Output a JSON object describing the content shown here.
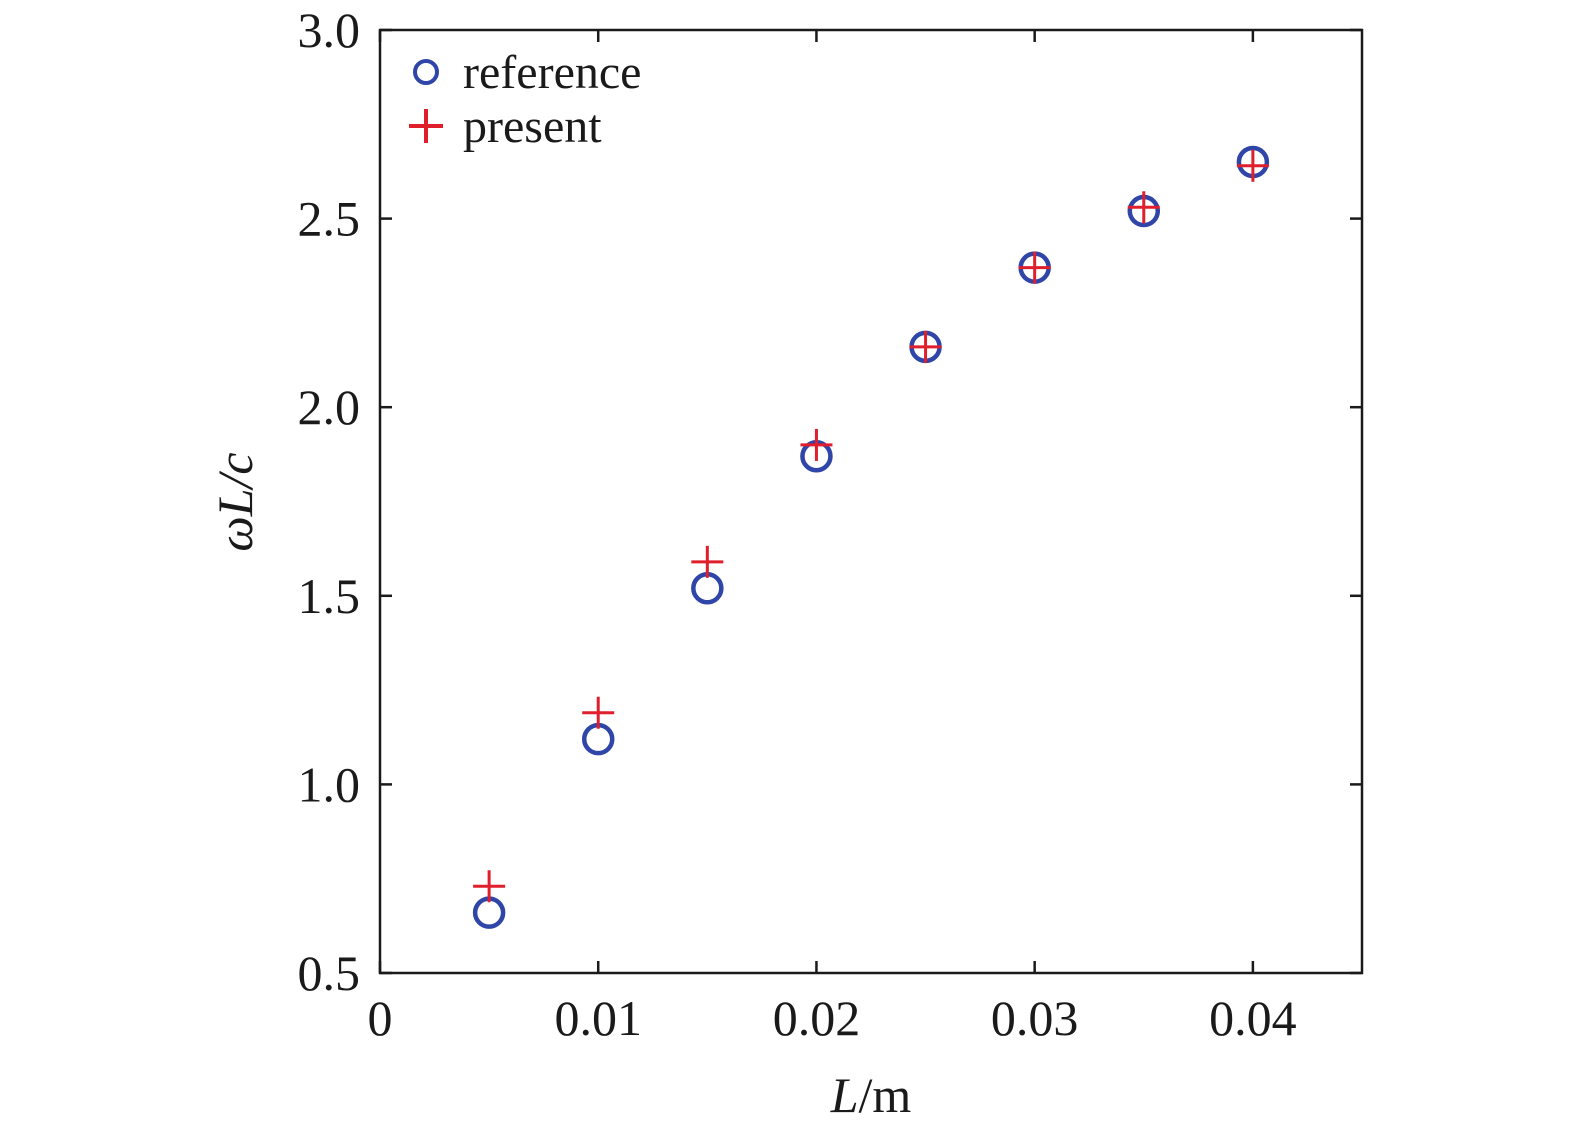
{
  "chart_data": {
    "type": "scatter",
    "xlabel_italic": "L",
    "xlabel_unit": "/m",
    "ylabel_omega": "ω",
    "ylabel_L": "L",
    "ylabel_rest": "/c",
    "xlim": [
      0,
      0.045
    ],
    "ylim": [
      0.5,
      3.0
    ],
    "xticks": [
      0,
      0.01,
      0.02,
      0.03,
      0.04
    ],
    "xtick_labels": [
      "0",
      "0.01",
      "0.02",
      "0.03",
      "0.04"
    ],
    "yticks": [
      0.5,
      1.0,
      1.5,
      2.0,
      2.5,
      3.0
    ],
    "ytick_labels": [
      "0.5",
      "1.0",
      "1.5",
      "2.0",
      "2.5",
      "3.0"
    ],
    "grid": false,
    "legend_position": "top-left",
    "series": [
      {
        "name": "reference",
        "marker": "circle",
        "color": "#2f45a8",
        "x": [
          0.005,
          0.01,
          0.015,
          0.02,
          0.025,
          0.03,
          0.035,
          0.04
        ],
        "y": [
          0.66,
          1.12,
          1.52,
          1.87,
          2.16,
          2.37,
          2.52,
          2.65
        ]
      },
      {
        "name": "present",
        "marker": "plus",
        "color": "#e01f2d",
        "x": [
          0.005,
          0.01,
          0.015,
          0.02,
          0.025,
          0.03,
          0.035,
          0.04
        ],
        "y": [
          0.73,
          1.19,
          1.59,
          1.9,
          2.16,
          2.37,
          2.53,
          2.64
        ]
      }
    ]
  }
}
